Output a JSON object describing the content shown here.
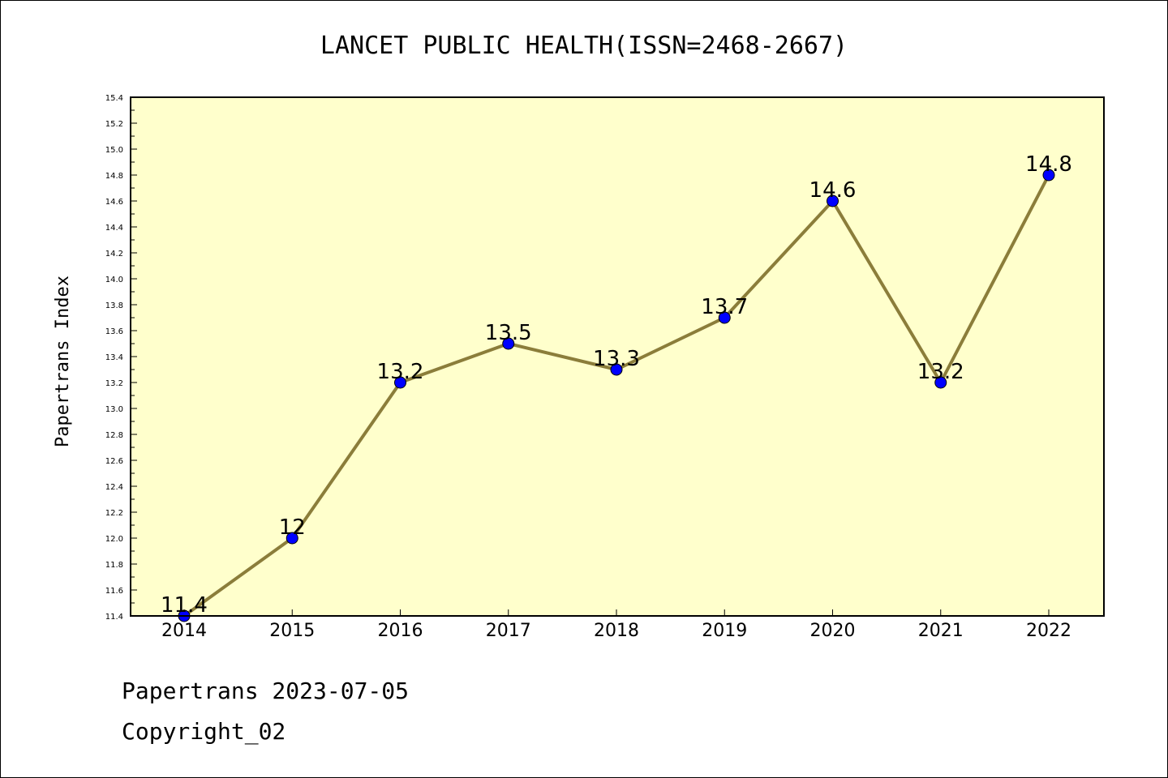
{
  "chart_data": {
    "type": "line",
    "title": "LANCET PUBLIC HEALTH(ISSN=2468-2667)",
    "xlabel": "",
    "ylabel": "Papertrans Index",
    "x": [
      "2014",
      "2015",
      "2016",
      "2017",
      "2018",
      "2019",
      "2020",
      "2021",
      "2022"
    ],
    "series": [
      {
        "values": [
          11.4,
          12.0,
          13.2,
          13.5,
          13.3,
          13.7,
          14.6,
          13.2,
          14.8
        ],
        "labels": [
          "11.4",
          "12",
          "13.2",
          "13.5",
          "13.3",
          "13.7",
          "14.6",
          "13.2",
          "14.8"
        ]
      }
    ],
    "ylim": [
      11.4,
      15.4
    ],
    "yticks": [
      "11.4",
      "11.6",
      "11.8",
      "12.0",
      "12.2",
      "12.4",
      "12.6",
      "12.8",
      "13.0",
      "13.2",
      "13.4",
      "13.6",
      "13.8",
      "14.0",
      "14.2",
      "14.4",
      "14.6",
      "14.8",
      "15.0",
      "15.2",
      "15.4"
    ],
    "grid": false,
    "legend": "none",
    "colors": {
      "line": "#8b7d3a",
      "marker": "#0000ff",
      "plot_background": "#ffffcc"
    }
  },
  "footer": {
    "line1": "Papertrans 2023-07-05",
    "line2": "Copyright_02"
  }
}
